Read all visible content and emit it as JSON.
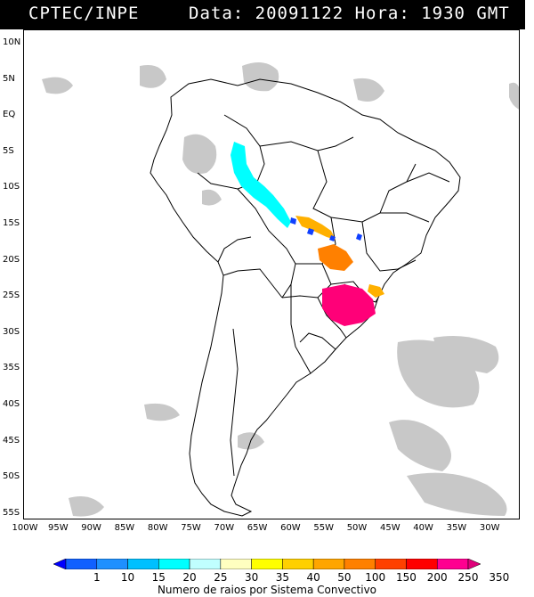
{
  "header": {
    "org": "CPTEC/INPE",
    "datetime": "Data: 20091122 Hora: 1930 GMT"
  },
  "map": {
    "lat_labels": [
      "10N",
      "5N",
      "EQ",
      "5S",
      "10S",
      "15S",
      "20S",
      "25S",
      "30S",
      "35S",
      "40S",
      "45S",
      "50S",
      "55S"
    ],
    "lon_labels": [
      "100W",
      "95W",
      "90W",
      "85W",
      "80W",
      "75W",
      "70W",
      "65W",
      "60W",
      "55W",
      "50W",
      "45W",
      "40W",
      "35W",
      "30W"
    ],
    "cloud_color": "#c8c8c8",
    "coast_color": "#000000"
  },
  "legend": {
    "values": [
      "1",
      "10",
      "15",
      "20",
      "25",
      "30",
      "35",
      "40",
      "50",
      "100",
      "150",
      "200",
      "250",
      "350"
    ],
    "colors": [
      "#0000ff",
      "#1060ff",
      "#1e90ff",
      "#00c0ff",
      "#00ffff",
      "#c0ffff",
      "#ffffc0",
      "#ffff00",
      "#ffd000",
      "#ffa500",
      "#ff8000",
      "#ff4000",
      "#ff0000",
      "#ff0090",
      "#e0007a"
    ],
    "caption": "Numero de raios por Sistema Convectivo"
  },
  "systems": [
    {
      "color": "#00ffff"
    },
    {
      "color": "#ffb000"
    },
    {
      "color": "#ff8000"
    },
    {
      "color": "#ff0078"
    },
    {
      "color": "#1040ff"
    }
  ]
}
